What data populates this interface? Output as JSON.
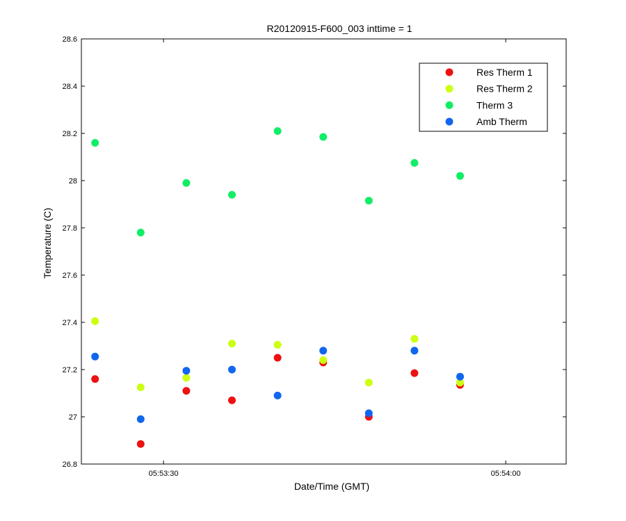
{
  "chart_data": {
    "type": "scatter",
    "title": "R20120915-F600_003 inttime = 1",
    "xlabel": "Date/Time (GMT)",
    "ylabel": "Temperature (C)",
    "xlim": [
      "05:53:22.8",
      "05:54:05.3"
    ],
    "ylim": [
      26.8,
      28.6
    ],
    "x_ticks": [
      "05:53:30",
      "05:54:00"
    ],
    "y_ticks": [
      "26.8",
      "27",
      "27.2",
      "27.4",
      "27.6",
      "27.8",
      "28",
      "28.2",
      "28.4",
      "28.6"
    ],
    "x": [
      "05:53:24",
      "05:53:28",
      "05:53:32",
      "05:53:36",
      "05:53:40",
      "05:53:44",
      "05:53:48",
      "05:53:52",
      "05:53:56"
    ],
    "grid": false,
    "legend_position": "top-right",
    "series": [
      {
        "name": "Res Therm 1",
        "color": "#ee1111",
        "values": [
          27.16,
          26.885,
          27.11,
          27.07,
          27.25,
          27.23,
          27.0,
          27.185,
          27.135
        ]
      },
      {
        "name": "Res Therm 2",
        "color": "#ccff11",
        "values": [
          27.405,
          27.125,
          27.165,
          27.31,
          27.305,
          27.24,
          27.145,
          27.33,
          27.145
        ]
      },
      {
        "name": "Therm 3",
        "color": "#11ee66",
        "values": [
          28.16,
          27.78,
          27.99,
          27.94,
          28.21,
          28.185,
          27.915,
          28.075,
          28.02
        ]
      },
      {
        "name": "Amb Therm",
        "color": "#1166ee",
        "values": [
          27.255,
          26.99,
          27.195,
          27.2,
          27.09,
          27.28,
          27.015,
          27.28,
          27.17
        ]
      }
    ]
  }
}
